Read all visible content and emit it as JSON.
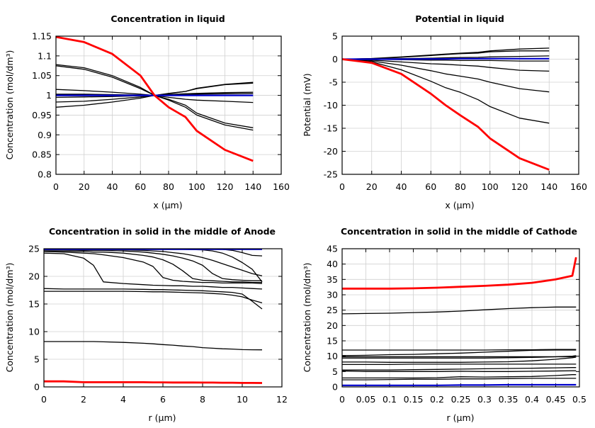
{
  "chart_data": [
    {
      "type": "line",
      "title": "Concentration in liquid",
      "xlabel": "x (µm)",
      "ylabel": "Concentration (mol/dm³)",
      "xlim": [
        0,
        160
      ],
      "ylim": [
        0.8,
        1.15
      ],
      "xticks": [
        "0",
        "20",
        "40",
        "60",
        "80",
        "100",
        "120",
        "140",
        "160"
      ],
      "yticks": [
        "0.8",
        "0.85",
        "0.9",
        "0.95",
        "1",
        "1.05",
        "1.1",
        "1.15"
      ],
      "grid": true,
      "x": [
        0,
        20,
        40,
        60,
        70,
        80,
        92,
        100,
        120,
        140
      ],
      "series": [
        {
          "color": "#000000",
          "values": [
            1.078,
            1.07,
            1.05,
            1.02,
            1.0,
            0.99,
            0.975,
            0.955,
            0.93,
            0.918
          ]
        },
        {
          "color": "#000000",
          "values": [
            1.075,
            1.066,
            1.046,
            1.017,
            1.0,
            0.988,
            0.97,
            0.95,
            0.925,
            0.912
          ]
        },
        {
          "color": "#000000",
          "values": [
            1.015,
            1.012,
            1.008,
            1.003,
            1.0,
            0.995,
            0.99,
            0.988,
            0.985,
            0.982
          ]
        },
        {
          "color": "#000000",
          "values": [
            0.97,
            0.975,
            0.983,
            0.993,
            1.0,
            1.005,
            1.01,
            1.018,
            1.028,
            1.033
          ]
        },
        {
          "color": "#000000",
          "values": [
            0.983,
            0.985,
            0.99,
            0.996,
            1.0,
            1.004,
            1.01,
            1.017,
            1.027,
            1.031
          ]
        },
        {
          "color": "#000000",
          "values": [
            0.995,
            0.996,
            0.997,
            0.999,
            1.0,
            1.002,
            1.004,
            1.005,
            1.007,
            1.008
          ]
        },
        {
          "color": "#000000",
          "values": [
            1.003,
            1.003,
            1.002,
            1.001,
            1.0,
            1.001,
            1.002,
            1.003,
            1.004,
            1.005
          ]
        },
        {
          "color": "#0000cc",
          "values": [
            1.0,
            1.0,
            1.0,
            1.0,
            1.0,
            1.0,
            1.0,
            1.0,
            1.0,
            1.0
          ]
        },
        {
          "color": "#ff0000",
          "values": [
            1.148,
            1.135,
            1.105,
            1.05,
            1.0,
            0.97,
            0.945,
            0.91,
            0.862,
            0.834
          ]
        }
      ]
    },
    {
      "type": "line",
      "title": "Potential in liquid",
      "xlabel": "x (µm)",
      "ylabel": "Potential (mV)",
      "xlim": [
        0,
        160
      ],
      "ylim": [
        -25,
        5
      ],
      "xticks": [
        "0",
        "20",
        "40",
        "60",
        "80",
        "100",
        "120",
        "140",
        "160"
      ],
      "yticks": [
        "-25",
        "-20",
        "-15",
        "-10",
        "-5",
        "0",
        "5"
      ],
      "grid": true,
      "x": [
        0,
        20,
        40,
        60,
        70,
        80,
        92,
        100,
        120,
        140
      ],
      "series": [
        {
          "color": "#000000",
          "values": [
            0,
            -0.6,
            -2.3,
            -4.8,
            -6.2,
            -7.2,
            -8.8,
            -10.3,
            -12.8,
            -13.9
          ]
        },
        {
          "color": "#000000",
          "values": [
            0,
            -0.4,
            -1.3,
            -2.5,
            -3.2,
            -3.7,
            -4.3,
            -5.0,
            -6.4,
            -7.1
          ]
        },
        {
          "color": "#000000",
          "values": [
            0,
            -0.2,
            -0.6,
            -1.0,
            -1.1,
            -1.3,
            -1.5,
            -1.8,
            -2.4,
            -2.6
          ]
        },
        {
          "color": "#000000",
          "values": [
            0,
            0,
            -0.1,
            -0.2,
            -0.2,
            -0.3,
            -0.3,
            -0.3,
            -0.4,
            -0.4
          ]
        },
        {
          "color": "#000000",
          "values": [
            0,
            0.05,
            0.1,
            0.2,
            0.3,
            0.35,
            0.4,
            0.5,
            0.6,
            0.7
          ]
        },
        {
          "color": "#000000",
          "values": [
            0,
            0.1,
            0.4,
            0.8,
            1.0,
            1.2,
            1.3,
            1.6,
            1.8,
            1.8
          ]
        },
        {
          "color": "#000000",
          "values": [
            0,
            0.15,
            0.5,
            0.9,
            1.1,
            1.3,
            1.5,
            1.8,
            2.2,
            2.4
          ]
        },
        {
          "color": "#0000cc",
          "values": [
            0,
            0,
            0,
            0.05,
            0.05,
            0.1,
            0.1,
            0.1,
            0.1,
            0.1
          ]
        },
        {
          "color": "#ff0000",
          "values": [
            0,
            -0.8,
            -3.2,
            -7.5,
            -10.0,
            -12.2,
            -14.7,
            -17.2,
            -21.5,
            -24.0
          ]
        }
      ]
    },
    {
      "type": "line",
      "title": "Concentration in solid in the middle of Anode",
      "xlabel": "r (µm)",
      "ylabel": "Concentration (mol/dm³)",
      "xlim": [
        0,
        12
      ],
      "ylim": [
        0,
        25
      ],
      "xticks": [
        "0",
        "2",
        "4",
        "6",
        "8",
        "10",
        "12"
      ],
      "yticks": [
        "0",
        "5",
        "10",
        "15",
        "20",
        "25"
      ],
      "grid": true,
      "x": [
        0,
        1,
        2,
        2.5,
        3,
        4,
        5,
        5.5,
        6,
        6.5,
        7,
        7.5,
        8,
        8.5,
        9,
        9.5,
        10,
        10.5,
        11
      ],
      "series": [
        {
          "color": "#000000",
          "values": [
            8.2,
            8.2,
            8.2,
            8.2,
            8.15,
            8.05,
            7.9,
            7.8,
            7.65,
            7.55,
            7.4,
            7.3,
            7.1,
            7.0,
            6.9,
            6.85,
            6.75,
            6.72,
            6.7
          ]
        },
        {
          "color": "#000000",
          "values": [
            17.3,
            17.3,
            17.3,
            17.3,
            17.3,
            17.3,
            17.25,
            17.2,
            17.2,
            17.15,
            17.1,
            17.05,
            17.0,
            16.9,
            16.8,
            16.6,
            16.3,
            15.7,
            15.2
          ]
        },
        {
          "color": "#000000",
          "values": [
            17.8,
            17.7,
            17.7,
            17.7,
            17.7,
            17.7,
            17.65,
            17.6,
            17.6,
            17.55,
            17.5,
            17.45,
            17.4,
            17.3,
            17.2,
            17.1,
            16.8,
            15.5,
            14.1
          ]
        },
        {
          "color": "#000000",
          "values": [
            24.2,
            24.1,
            23.3,
            22.0,
            19.0,
            18.7,
            18.5,
            18.4,
            18.35,
            18.3,
            18.3,
            18.2,
            18.2,
            18.1,
            18.0,
            18.0,
            17.9,
            17.8,
            17.7
          ]
        },
        {
          "color": "#000000",
          "values": [
            24.5,
            24.4,
            24.2,
            24.1,
            23.9,
            23.4,
            22.6,
            21.8,
            19.8,
            19.3,
            19.1,
            19.0,
            18.9,
            18.9,
            18.8,
            18.8,
            18.8,
            18.8,
            18.7
          ]
        },
        {
          "color": "#000000",
          "values": [
            24.6,
            24.6,
            24.5,
            24.4,
            24.4,
            24.2,
            23.8,
            23.5,
            23.0,
            22.2,
            21.0,
            19.6,
            19.3,
            19.2,
            19.1,
            19.0,
            19.0,
            18.9,
            18.9
          ]
        },
        {
          "color": "#000000",
          "values": [
            24.8,
            24.8,
            24.7,
            24.7,
            24.7,
            24.6,
            24.4,
            24.2,
            24.0,
            23.7,
            23.3,
            22.8,
            22.0,
            20.5,
            19.6,
            19.4,
            19.3,
            19.2,
            19.2
          ]
        },
        {
          "color": "#000000",
          "values": [
            24.9,
            24.9,
            24.9,
            24.9,
            24.9,
            24.8,
            24.7,
            24.6,
            24.5,
            24.3,
            24.1,
            23.8,
            23.4,
            22.9,
            22.3,
            21.7,
            21.1,
            20.5,
            20.1
          ]
        },
        {
          "color": "#000000",
          "values": [
            24.9,
            24.9,
            24.9,
            24.9,
            24.9,
            24.9,
            24.9,
            24.9,
            24.9,
            24.9,
            24.9,
            24.85,
            24.8,
            24.6,
            24.2,
            23.5,
            22.5,
            21.3,
            19.0
          ]
        },
        {
          "color": "#000000",
          "values": [
            24.95,
            24.95,
            24.95,
            24.95,
            24.95,
            24.95,
            24.95,
            24.95,
            24.95,
            24.95,
            24.95,
            24.95,
            24.95,
            24.93,
            24.9,
            24.7,
            24.3,
            23.8,
            23.7
          ]
        },
        {
          "color": "#0000cc",
          "values": [
            24.9,
            24.9,
            24.9,
            24.9,
            24.9,
            24.9,
            24.9,
            24.9,
            24.9,
            24.9,
            24.9,
            24.9,
            24.9,
            24.9,
            24.9,
            24.9,
            24.9,
            24.9,
            24.9
          ]
        },
        {
          "color": "#ff0000",
          "values": [
            1.0,
            1.0,
            0.85,
            0.85,
            0.85,
            0.85,
            0.85,
            0.82,
            0.82,
            0.8,
            0.8,
            0.8,
            0.78,
            0.78,
            0.75,
            0.75,
            0.72,
            0.72,
            0.7
          ]
        }
      ]
    },
    {
      "type": "line",
      "title": "Concentration in solid in the middle of Cathode",
      "xlabel": "r (µm)",
      "ylabel": "Concentration (mol/dm³)",
      "xlim": [
        0,
        0.5
      ],
      "ylim": [
        0,
        45
      ],
      "xticks": [
        "0",
        "0.05",
        "0.1",
        "0.15",
        "0.2",
        "0.25",
        "0.3",
        "0.35",
        "0.4",
        "0.45",
        "0.5"
      ],
      "yticks": [
        "0",
        "5",
        "10",
        "15",
        "20",
        "25",
        "30",
        "35",
        "40",
        "45"
      ],
      "grid": true,
      "x": [
        0,
        0.05,
        0.1,
        0.15,
        0.2,
        0.25,
        0.3,
        0.35,
        0.4,
        0.45,
        0.485,
        0.493
      ],
      "series": [
        {
          "color": "#000000",
          "values": [
            23.8,
            23.9,
            24.0,
            24.2,
            24.4,
            24.7,
            25.1,
            25.5,
            25.8,
            26.0,
            26.0,
            26.0
          ]
        },
        {
          "color": "#000000",
          "values": [
            12,
            12,
            12,
            12,
            12,
            12,
            12,
            12.1,
            12.1,
            12.2,
            12.2,
            12.2
          ]
        },
        {
          "color": "#000000",
          "values": [
            10.2,
            10.3,
            10.5,
            10.6,
            10.8,
            11.0,
            11.3,
            11.6,
            11.9,
            12.0,
            12.0,
            12.0
          ]
        },
        {
          "color": "#000000",
          "values": [
            9.8,
            9.8,
            9.8,
            9.8,
            9.8,
            9.8,
            9.8,
            9.8,
            9.8,
            9.8,
            9.8,
            9.8
          ]
        },
        {
          "color": "#000000",
          "values": [
            9.4,
            9.4,
            9.4,
            9.4,
            9.4,
            9.4,
            9.4,
            9.5,
            9.6,
            9.8,
            10.0,
            10.2
          ]
        },
        {
          "color": "#000000",
          "values": [
            8.1,
            8.1,
            8.0,
            8.0,
            8.0,
            8.0,
            8.1,
            8.2,
            8.5,
            9.0,
            9.5,
            9.7
          ]
        },
        {
          "color": "#000000",
          "values": [
            7.3,
            7.3,
            7.3,
            7.4,
            7.4,
            7.4,
            7.4,
            7.4,
            7.4,
            7.4,
            7.4,
            7.4
          ]
        },
        {
          "color": "#000000",
          "values": [
            5.5,
            5.5,
            5.5,
            5.6,
            5.7,
            5.8,
            5.9,
            6.0,
            6.1,
            6.2,
            6.3,
            6.3
          ]
        },
        {
          "color": "#000000",
          "values": [
            5.2,
            5.0,
            5.0,
            5.0,
            5.0,
            5.1,
            5.0,
            5.0,
            5.1,
            5.2,
            5.3,
            5.3
          ]
        },
        {
          "color": "#000000",
          "values": [
            2.9,
            2.9,
            2.9,
            2.9,
            3.0,
            3.3,
            3.2,
            3.3,
            3.4,
            3.7,
            4.0,
            4.0
          ]
        },
        {
          "color": "#000000",
          "values": [
            2.3,
            2.3,
            2.4,
            2.5,
            2.5,
            2.6,
            2.6,
            2.7,
            2.8,
            2.8,
            2.8,
            2.8
          ]
        },
        {
          "color": "#0000cc",
          "values": [
            0.5,
            0.5,
            0.5,
            0.5,
            0.5,
            0.6,
            0.6,
            0.7,
            0.7,
            0.7,
            0.7,
            0.7
          ]
        },
        {
          "color": "#ff0000",
          "values": [
            32.0,
            32.0,
            32.0,
            32.1,
            32.3,
            32.6,
            32.9,
            33.3,
            33.9,
            35.0,
            36.2,
            42.2
          ]
        }
      ]
    }
  ]
}
